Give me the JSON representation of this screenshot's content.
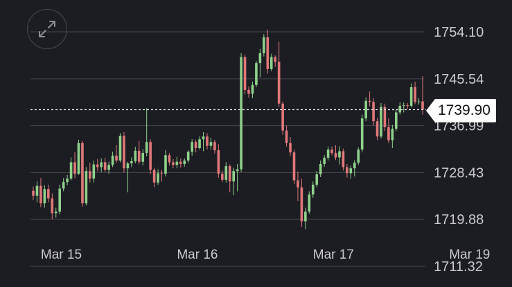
{
  "chart_data": {
    "type": "candlestick",
    "current_price": "1739.90",
    "current_value": 1739.9,
    "y_ticks": [
      "1754.10",
      "1745.54",
      "1736.99",
      "1728.43",
      "1719.88",
      "1711.32"
    ],
    "y_tick_values": [
      1754.1,
      1745.54,
      1736.99,
      1728.43,
      1719.88,
      1711.32
    ],
    "ylim": [
      1711.32,
      1754.1
    ],
    "x_ticks": [
      "Mar 15",
      "Mar 16",
      "Mar 17",
      "Mar 19"
    ],
    "x_tick_index": [
      2,
      38,
      74,
      110
    ],
    "grid": true,
    "colors": {
      "up": "#8fd18b",
      "down": "#e0787a",
      "grid": "#45464d",
      "axis_text": "#c9c9ce",
      "background": "#1c1d22"
    },
    "candles": [
      [
        1725.1,
        1725.9,
        1723.4,
        1724.2
      ],
      [
        1724.2,
        1726.8,
        1723.0,
        1726.0
      ],
      [
        1726.0,
        1727.4,
        1722.1,
        1722.8
      ],
      [
        1722.8,
        1726.1,
        1722.0,
        1725.4
      ],
      [
        1725.4,
        1726.2,
        1723.0,
        1723.7
      ],
      [
        1723.7,
        1724.6,
        1719.9,
        1721.0
      ],
      [
        1721.0,
        1722.0,
        1720.2,
        1721.3
      ],
      [
        1721.3,
        1726.2,
        1720.8,
        1725.5
      ],
      [
        1725.5,
        1727.4,
        1725.0,
        1726.7
      ],
      [
        1726.7,
        1728.0,
        1726.1,
        1727.3
      ],
      [
        1727.3,
        1731.2,
        1727.0,
        1730.3
      ],
      [
        1730.3,
        1732.1,
        1727.4,
        1728.2
      ],
      [
        1728.2,
        1734.4,
        1728.0,
        1733.8
      ],
      [
        1733.8,
        1734.2,
        1722.2,
        1722.8
      ],
      [
        1722.8,
        1729.4,
        1722.4,
        1728.7
      ],
      [
        1728.7,
        1730.2,
        1726.6,
        1727.3
      ],
      [
        1727.3,
        1730.6,
        1726.6,
        1729.9
      ],
      [
        1729.9,
        1730.9,
        1728.7,
        1729.4
      ],
      [
        1729.4,
        1731.0,
        1728.5,
        1730.3
      ],
      [
        1730.3,
        1731.1,
        1728.5,
        1728.9
      ],
      [
        1728.9,
        1730.4,
        1728.2,
        1729.8
      ],
      [
        1729.8,
        1732.2,
        1729.4,
        1731.5
      ],
      [
        1731.5,
        1733.4,
        1730.2,
        1730.6
      ],
      [
        1730.6,
        1735.6,
        1730.3,
        1735.1
      ],
      [
        1735.1,
        1735.8,
        1728.4,
        1729.2
      ],
      [
        1729.2,
        1730.4,
        1724.8,
        1730.1
      ],
      [
        1730.1,
        1731.2,
        1729.4,
        1730.5
      ],
      [
        1730.5,
        1733.1,
        1730.1,
        1732.4
      ],
      [
        1732.4,
        1734.2,
        1729.9,
        1730.4
      ],
      [
        1730.4,
        1732.7,
        1729.7,
        1732.0
      ],
      [
        1732.0,
        1740.2,
        1731.4,
        1734.0
      ],
      [
        1734.0,
        1734.5,
        1728.1,
        1728.9
      ],
      [
        1728.9,
        1729.3,
        1725.8,
        1726.6
      ],
      [
        1726.6,
        1729.0,
        1726.2,
        1728.3
      ],
      [
        1728.3,
        1728.9,
        1726.8,
        1728.2
      ],
      [
        1728.2,
        1732.5,
        1727.7,
        1731.6
      ],
      [
        1731.6,
        1732.0,
        1729.7,
        1730.3
      ],
      [
        1730.3,
        1730.9,
        1729.2,
        1729.8
      ],
      [
        1729.8,
        1731.3,
        1729.2,
        1730.4
      ],
      [
        1730.4,
        1731.0,
        1729.3,
        1730.0
      ],
      [
        1730.0,
        1731.0,
        1729.5,
        1730.6
      ],
      [
        1730.6,
        1732.5,
        1730.2,
        1732.2
      ],
      [
        1732.2,
        1734.5,
        1731.5,
        1734.0
      ],
      [
        1734.0,
        1734.4,
        1732.1,
        1732.9
      ],
      [
        1732.9,
        1735.0,
        1732.6,
        1734.5
      ],
      [
        1734.5,
        1735.8,
        1732.3,
        1735.0
      ],
      [
        1735.0,
        1735.6,
        1732.6,
        1733.3
      ],
      [
        1733.3,
        1734.8,
        1732.6,
        1734.0
      ],
      [
        1734.0,
        1734.4,
        1731.9,
        1732.5
      ],
      [
        1732.5,
        1733.6,
        1727.5,
        1728.2
      ],
      [
        1728.2,
        1728.8,
        1726.7,
        1727.1
      ],
      [
        1727.1,
        1730.3,
        1726.6,
        1729.6
      ],
      [
        1729.6,
        1729.9,
        1724.8,
        1726.8
      ],
      [
        1726.8,
        1729.3,
        1724.3,
        1728.7
      ],
      [
        1728.7,
        1730.0,
        1725.0,
        1729.0
      ],
      [
        1729.0,
        1750.2,
        1728.5,
        1749.5
      ],
      [
        1749.5,
        1749.9,
        1742.7,
        1743.5
      ],
      [
        1743.5,
        1744.1,
        1742.1,
        1742.8
      ],
      [
        1742.8,
        1745.0,
        1742.0,
        1744.4
      ],
      [
        1744.4,
        1748.8,
        1744.0,
        1748.4
      ],
      [
        1748.4,
        1751.0,
        1745.8,
        1750.2
      ],
      [
        1750.2,
        1753.7,
        1749.6,
        1753.1
      ],
      [
        1753.1,
        1754.5,
        1746.5,
        1747.3
      ],
      [
        1747.3,
        1750.1,
        1746.9,
        1749.5
      ],
      [
        1749.5,
        1749.8,
        1747.7,
        1748.6
      ],
      [
        1748.6,
        1752.3,
        1740.4,
        1741.0
      ],
      [
        1741.0,
        1741.4,
        1735.3,
        1736.1
      ],
      [
        1736.1,
        1737.0,
        1733.2,
        1733.8
      ],
      [
        1733.8,
        1734.9,
        1731.4,
        1732.1
      ],
      [
        1732.1,
        1732.6,
        1726.3,
        1727.0
      ],
      [
        1727.0,
        1728.6,
        1723.2,
        1725.7
      ],
      [
        1725.7,
        1727.3,
        1718.5,
        1719.5
      ],
      [
        1719.5,
        1722.0,
        1718.1,
        1721.3
      ],
      [
        1721.3,
        1725.0,
        1720.9,
        1724.4
      ],
      [
        1724.4,
        1726.8,
        1723.8,
        1726.2
      ],
      [
        1726.2,
        1728.7,
        1725.7,
        1728.1
      ],
      [
        1728.1,
        1730.6,
        1727.6,
        1730.0
      ],
      [
        1730.0,
        1731.6,
        1729.5,
        1731.1
      ],
      [
        1731.1,
        1733.2,
        1730.6,
        1732.6
      ],
      [
        1732.6,
        1733.2,
        1731.6,
        1732.0
      ],
      [
        1732.0,
        1733.4,
        1730.7,
        1731.2
      ],
      [
        1731.2,
        1733.2,
        1729.9,
        1732.3
      ],
      [
        1732.3,
        1732.8,
        1728.8,
        1729.4
      ],
      [
        1729.4,
        1730.0,
        1727.5,
        1728.3
      ],
      [
        1728.3,
        1729.7,
        1727.3,
        1729.2
      ],
      [
        1729.2,
        1730.7,
        1727.7,
        1730.2
      ],
      [
        1730.2,
        1733.0,
        1729.8,
        1732.6
      ],
      [
        1732.6,
        1739.0,
        1732.1,
        1738.3
      ],
      [
        1738.3,
        1742.1,
        1737.8,
        1741.5
      ],
      [
        1741.5,
        1743.2,
        1740.5,
        1741.3
      ],
      [
        1741.3,
        1742.0,
        1737.0,
        1737.8
      ],
      [
        1737.8,
        1738.4,
        1734.3,
        1735.0
      ],
      [
        1735.0,
        1741.1,
        1734.6,
        1740.4
      ],
      [
        1740.4,
        1741.0,
        1736.0,
        1736.7
      ],
      [
        1736.7,
        1738.3,
        1733.8,
        1734.3
      ],
      [
        1734.3,
        1737.1,
        1732.9,
        1736.4
      ],
      [
        1736.4,
        1739.9,
        1736.0,
        1739.4
      ],
      [
        1739.4,
        1741.2,
        1739.0,
        1740.6
      ],
      [
        1740.6,
        1741.2,
        1739.4,
        1740.7
      ],
      [
        1740.7,
        1741.1,
        1740.0,
        1740.6
      ],
      [
        1740.6,
        1744.7,
        1740.3,
        1744.0
      ],
      [
        1744.0,
        1745.0,
        1740.9,
        1741.3
      ],
      [
        1741.3,
        1742.0,
        1740.8,
        1741.4
      ],
      [
        1741.4,
        1746.0,
        1739.0,
        1739.9
      ]
    ]
  }
}
